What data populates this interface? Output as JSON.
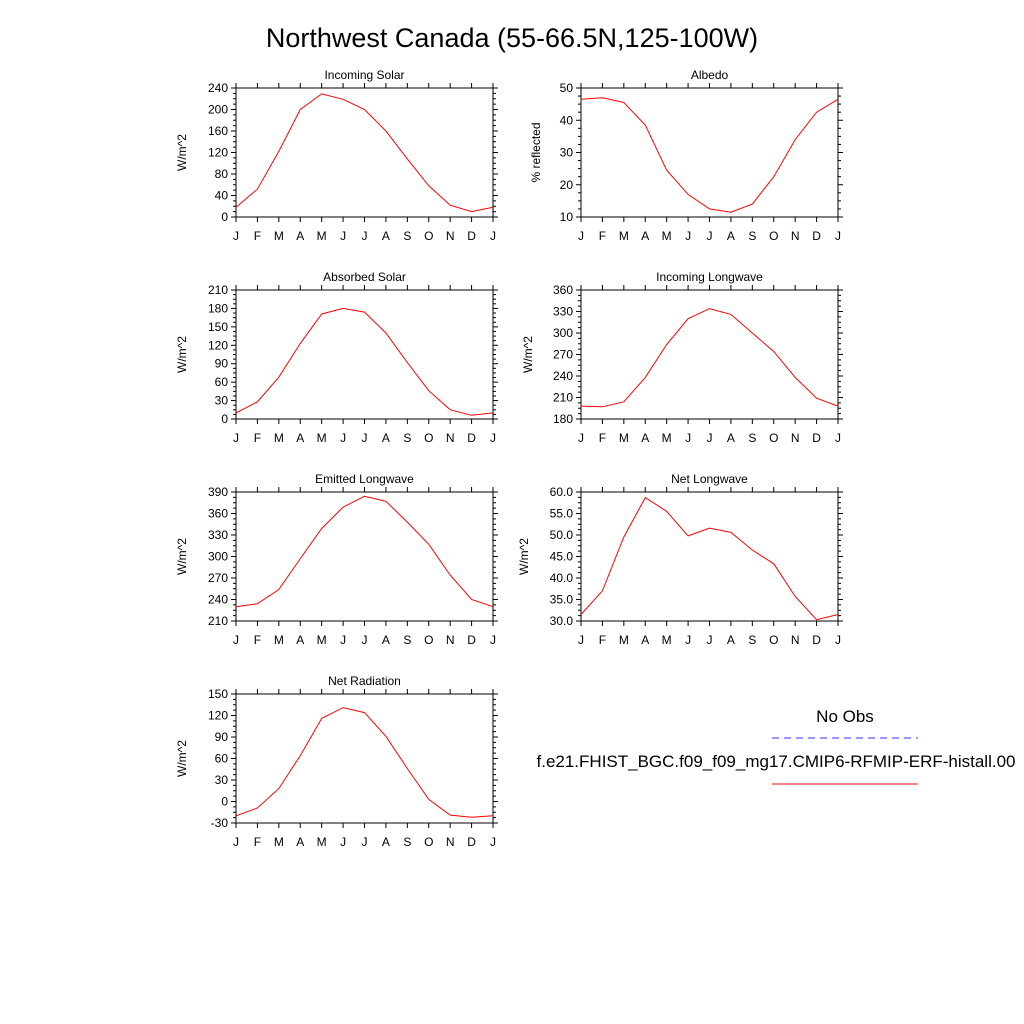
{
  "figure": {
    "title": "Northwest Canada (55-66.5N,125-100W)",
    "legend": {
      "obs_label": "No Obs",
      "obs_color": "#3333ff",
      "model_label": "f.e21.FHIST_BGC.f09_f09_mg17.CMIP6-RFMIP-ERF-histall.00",
      "model_color": "#ff0000"
    }
  },
  "chart_data": [
    {
      "type": "line",
      "title": "Incoming Solar",
      "ylabel": "W/m^2",
      "x": [
        "J",
        "F",
        "M",
        "A",
        "M",
        "J",
        "J",
        "A",
        "S",
        "O",
        "N",
        "D",
        "J"
      ],
      "ylim": [
        0,
        240
      ],
      "yticks": [
        0,
        40,
        80,
        120,
        160,
        200,
        240
      ],
      "ytick_labels": [
        "0",
        "40",
        "80",
        "120",
        "160",
        "200",
        "240"
      ],
      "series": [
        {
          "values": [
            18,
            52,
            122,
            200,
            229,
            219,
            200,
            160,
            108,
            58,
            22,
            10,
            18
          ],
          "color": "#ff0000"
        }
      ]
    },
    {
      "type": "line",
      "title": "Albedo",
      "ylabel": "% reflected",
      "x": [
        "J",
        "F",
        "M",
        "A",
        "M",
        "J",
        "J",
        "A",
        "S",
        "O",
        "N",
        "D",
        "J"
      ],
      "ylim": [
        10,
        50
      ],
      "yticks": [
        10,
        20,
        30,
        40,
        50
      ],
      "ytick_labels": [
        "10",
        "20",
        "30",
        "40",
        "50"
      ],
      "series": [
        {
          "values": [
            46.5,
            47,
            45.5,
            38.5,
            24.5,
            17,
            12.5,
            11.5,
            14,
            22.5,
            34,
            42.5,
            46.5
          ],
          "color": "#ff0000"
        }
      ]
    },
    {
      "type": "line",
      "title": "Absorbed Solar",
      "ylabel": "W/m^2",
      "x": [
        "J",
        "F",
        "M",
        "A",
        "M",
        "J",
        "J",
        "A",
        "S",
        "O",
        "N",
        "D",
        "J"
      ],
      "ylim": [
        0,
        210
      ],
      "yticks": [
        0,
        30,
        60,
        90,
        120,
        150,
        180,
        210
      ],
      "ytick_labels": [
        "0",
        "30",
        "60",
        "90",
        "120",
        "150",
        "180",
        "210"
      ],
      "series": [
        {
          "values": [
            10,
            28,
            68,
            123,
            171,
            180,
            174,
            140,
            92,
            46,
            15,
            6,
            10
          ],
          "color": "#ff0000"
        }
      ]
    },
    {
      "type": "line",
      "title": "Incoming Longwave",
      "ylabel": "W/m^2",
      "x": [
        "J",
        "F",
        "M",
        "A",
        "M",
        "J",
        "J",
        "A",
        "S",
        "O",
        "N",
        "D",
        "J"
      ],
      "ylim": [
        180,
        360
      ],
      "yticks": [
        180,
        210,
        240,
        270,
        300,
        330,
        360
      ],
      "ytick_labels": [
        "180",
        "210",
        "240",
        "270",
        "300",
        "330",
        "360"
      ],
      "series": [
        {
          "values": [
            198,
            197,
            204,
            238,
            284,
            320,
            334,
            326,
            300,
            274,
            238,
            209,
            198
          ],
          "color": "#ff0000"
        }
      ]
    },
    {
      "type": "line",
      "title": "Emitted Longwave",
      "ylabel": "W/m^2",
      "x": [
        "J",
        "F",
        "M",
        "A",
        "M",
        "J",
        "J",
        "A",
        "S",
        "O",
        "N",
        "D",
        "J"
      ],
      "ylim": [
        210,
        390
      ],
      "yticks": [
        210,
        240,
        270,
        300,
        330,
        360,
        390
      ],
      "ytick_labels": [
        "210",
        "240",
        "270",
        "300",
        "330",
        "360",
        "390"
      ],
      "series": [
        {
          "values": [
            230,
            234,
            254,
            297,
            339,
            369,
            384,
            377,
            348,
            317,
            274,
            240,
            230
          ],
          "color": "#ff0000"
        }
      ]
    },
    {
      "type": "line",
      "title": "Net Longwave",
      "ylabel": "W/m^2",
      "x": [
        "J",
        "F",
        "M",
        "A",
        "M",
        "J",
        "J",
        "A",
        "S",
        "O",
        "N",
        "D",
        "J"
      ],
      "ylim": [
        30,
        60
      ],
      "yticks": [
        30,
        35,
        40,
        45,
        50,
        55,
        60
      ],
      "ytick_labels": [
        "30.0",
        "35.0",
        "40.0",
        "45.0",
        "50.0",
        "55.0",
        "60.0"
      ],
      "series": [
        {
          "values": [
            31.5,
            37,
            49.5,
            58.7,
            55.5,
            49.8,
            51.6,
            50.6,
            46.5,
            43.3,
            35.7,
            30.3,
            31.5
          ],
          "color": "#ff0000"
        }
      ]
    },
    {
      "type": "line",
      "title": "Net Radiation",
      "ylabel": "W/m^2",
      "x": [
        "J",
        "F",
        "M",
        "A",
        "M",
        "J",
        "J",
        "A",
        "S",
        "O",
        "N",
        "D",
        "J"
      ],
      "ylim": [
        -30,
        150
      ],
      "yticks": [
        -30,
        0,
        30,
        60,
        90,
        120,
        150
      ],
      "ytick_labels": [
        "-30",
        "0",
        "30",
        "60",
        "90",
        "120",
        "150"
      ],
      "series": [
        {
          "values": [
            -20,
            -9,
            18,
            64,
            116,
            131,
            124,
            91,
            46,
            3,
            -19,
            -22,
            -20
          ],
          "color": "#ff0000"
        }
      ]
    }
  ]
}
